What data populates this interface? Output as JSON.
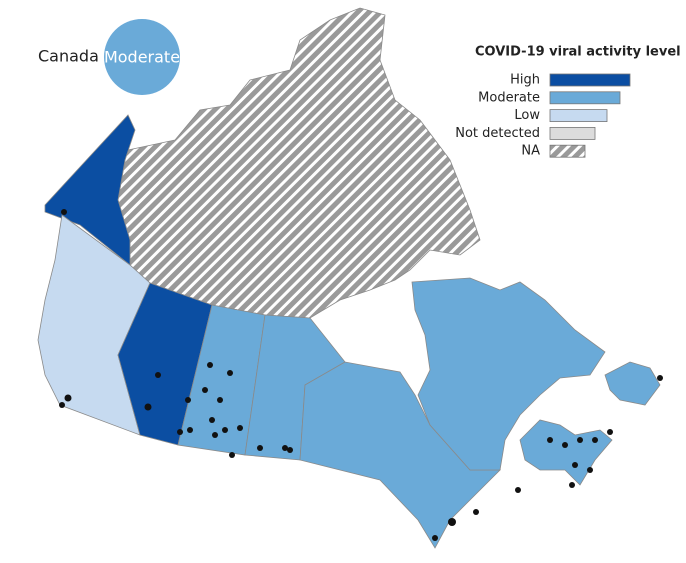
{
  "summary": {
    "label": "Canada",
    "level": "Moderate",
    "color": "#6aaad8"
  },
  "legend": {
    "title": "COVID-19 viral activity level",
    "items": [
      {
        "label": "High",
        "color": "#0b4ea2"
      },
      {
        "label": "Moderate",
        "color": "#6aaad8"
      },
      {
        "label": "Low",
        "color": "#c6daf0"
      },
      {
        "label": "Not detected",
        "color": "#dcdcdc"
      },
      {
        "label": "NA",
        "color": "#9a9a9a",
        "pattern": "hatch"
      }
    ]
  }
}
